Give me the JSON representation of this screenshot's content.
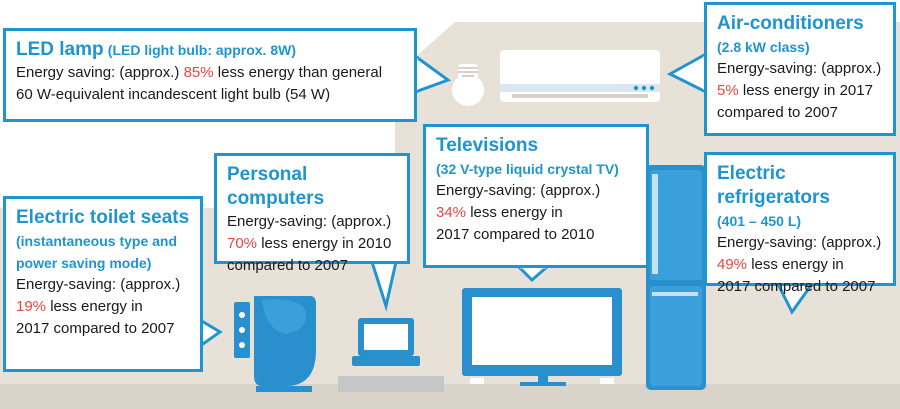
{
  "colors": {
    "accent_blue": "#1f95cf",
    "highlight_red": "#e8473d",
    "wall_beige": "#e7e1d8",
    "floor_gray": "#c4c6c8",
    "appliance_blue": "#2a8fcd"
  },
  "icons": [
    "light-bulb-icon",
    "air-conditioner-icon",
    "refrigerator-icon",
    "television-icon",
    "laptop-icon",
    "toilet-seat-icon"
  ],
  "led": {
    "title": "LED lamp",
    "subtitle": "(LED light bulb: approx. 8W)",
    "line1_prefix": "Energy saving: (approx.) ",
    "percent": "85%",
    "line1_suffix": " less energy than general",
    "line2": "60 W-equivalent incandescent light bulb (54 W)"
  },
  "aircon": {
    "title": "Air-conditioners",
    "subtitle": "(2.8 kW class)",
    "line1": "Energy-saving: (approx.)",
    "percent": "5%",
    "line2_suffix": " less energy in 2017",
    "line3": "compared to 2007"
  },
  "pc": {
    "title": "Personal computers",
    "line1": "Energy-saving: (approx.)",
    "percent": "70%",
    "line2_suffix": " less energy in 2010",
    "line3": "compared to 2007"
  },
  "tv": {
    "title": "Televisions",
    "subtitle": "(32 V-type liquid crystal TV)",
    "line1": "Energy-saving: (approx.)",
    "percent": "34%",
    "line2_suffix": " less energy in",
    "line3": "2017 compared to 2010"
  },
  "fridge": {
    "title": "Electric refrigerators",
    "subtitle": "(401 – 450 L)",
    "line1": "Energy-saving: (approx.)",
    "percent": "49%",
    "line2_suffix": " less energy in",
    "line3": "2017 compared to 2007"
  },
  "toilet": {
    "title": "Electric toilet seats",
    "subtitle1": "(instantaneous type and",
    "subtitle2": "power saving mode)",
    "line1": "Energy-saving: (approx.)",
    "percent": "19%",
    "line2_suffix": " less energy in",
    "line3": "2017 compared to 2007"
  }
}
